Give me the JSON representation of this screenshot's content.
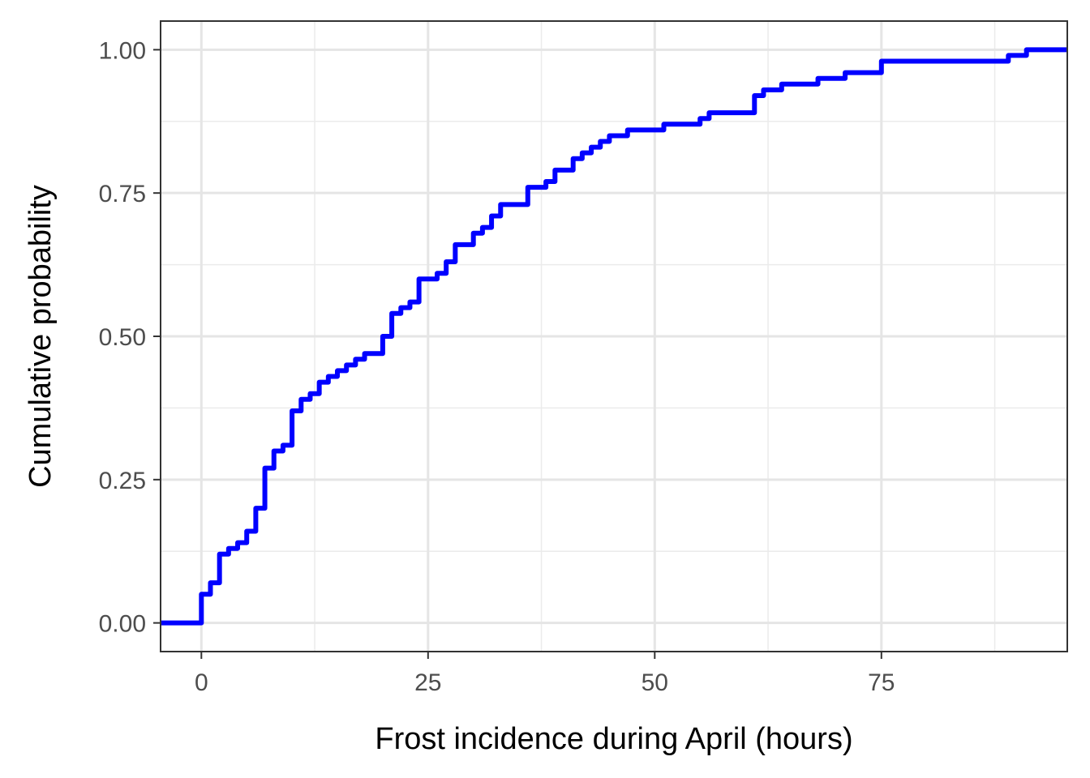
{
  "chart_data": {
    "type": "line",
    "subtype": "empirical-cdf-step",
    "title": "",
    "xlabel": "Frost incidence during April (hours)",
    "ylabel": "Cumulative probability",
    "xlim": [
      -4.5,
      95.5
    ],
    "ylim": [
      -0.05,
      1.05
    ],
    "x_ticks": [
      0,
      25,
      50,
      75
    ],
    "x_tick_labels": [
      "0",
      "25",
      "50",
      "75"
    ],
    "y_ticks": [
      0,
      0.25,
      0.5,
      0.75,
      1.0
    ],
    "y_tick_labels": [
      "0.00",
      "0.25",
      "0.50",
      "0.75",
      "1.00"
    ],
    "grid": true,
    "legend": "none",
    "series": [
      {
        "color": "#0000ff",
        "x": [
          0,
          1,
          2,
          3,
          4,
          5,
          6,
          7,
          8,
          9,
          10,
          11,
          12,
          13,
          14,
          15,
          16,
          17,
          18,
          20,
          21,
          22,
          23,
          24,
          26,
          27,
          28,
          30,
          31,
          32,
          33,
          36,
          38,
          39,
          41,
          42,
          43,
          44,
          45,
          47,
          51,
          55,
          56,
          61,
          62,
          64,
          65,
          68,
          71,
          75,
          89,
          91
        ],
        "y": [
          0.05,
          0.07,
          0.12,
          0.13,
          0.14,
          0.16,
          0.2,
          0.27,
          0.3,
          0.31,
          0.37,
          0.39,
          0.4,
          0.42,
          0.43,
          0.44,
          0.45,
          0.46,
          0.47,
          0.5,
          0.54,
          0.55,
          0.56,
          0.6,
          0.61,
          0.63,
          0.66,
          0.68,
          0.69,
          0.71,
          0.73,
          0.76,
          0.77,
          0.79,
          0.81,
          0.82,
          0.83,
          0.84,
          0.85,
          0.86,
          0.87,
          0.88,
          0.89,
          0.92,
          0.93,
          0.94,
          0.94,
          0.95,
          0.96,
          0.98,
          0.99,
          1.0
        ]
      }
    ]
  }
}
